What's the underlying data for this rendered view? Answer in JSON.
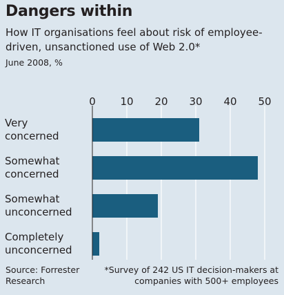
{
  "chart_data": {
    "type": "bar",
    "orientation": "horizontal",
    "title": "Dangers within",
    "subtitle": "How IT organisations feel about risk of employee-driven, unsanctioned use of Web 2.0*",
    "date_unit": "June 2008, %",
    "categories": [
      [
        "Very",
        "concerned"
      ],
      [
        "Somewhat",
        "concerned"
      ],
      [
        "Somewhat",
        "unconcerned"
      ],
      [
        "Completely",
        "unconcerned"
      ]
    ],
    "values": [
      31,
      48,
      19,
      2
    ],
    "xlim": [
      0,
      50
    ],
    "ticks": [
      0,
      10,
      20,
      30,
      40,
      50
    ],
    "grid": true,
    "colors": {
      "bar": "#1a5e7f",
      "background": "#dce6ee",
      "grid": "#ffffff"
    }
  },
  "source": "Source: Forrester Research",
  "footnote": "*Survey of 242 US IT decision-makers at companies with 500+ employees"
}
